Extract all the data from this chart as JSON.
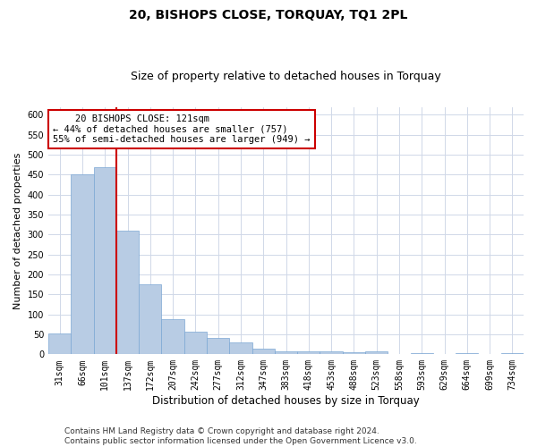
{
  "title": "20, BISHOPS CLOSE, TORQUAY, TQ1 2PL",
  "subtitle": "Size of property relative to detached houses in Torquay",
  "xlabel": "Distribution of detached houses by size in Torquay",
  "ylabel": "Number of detached properties",
  "bar_color": "#b8cce4",
  "bar_edge_color": "#7ba7d4",
  "grid_color": "#d0d8e8",
  "background_color": "#ffffff",
  "categories": [
    "31sqm",
    "66sqm",
    "101sqm",
    "137sqm",
    "172sqm",
    "207sqm",
    "242sqm",
    "277sqm",
    "312sqm",
    "347sqm",
    "383sqm",
    "418sqm",
    "453sqm",
    "488sqm",
    "523sqm",
    "558sqm",
    "593sqm",
    "629sqm",
    "664sqm",
    "699sqm",
    "734sqm"
  ],
  "values": [
    52,
    450,
    470,
    310,
    175,
    88,
    57,
    42,
    30,
    15,
    8,
    7,
    7,
    5,
    7,
    0,
    3,
    0,
    3,
    0,
    3
  ],
  "red_line_index": 2.5,
  "annotation_line1": "    20 BISHOPS CLOSE: 121sqm",
  "annotation_line2": "← 44% of detached houses are smaller (757)",
  "annotation_line3": "55% of semi-detached houses are larger (949) →",
  "annotation_box_color": "#ffffff",
  "annotation_box_edge_color": "#cc0000",
  "red_line_color": "#cc0000",
  "ylim": [
    0,
    620
  ],
  "yticks": [
    0,
    50,
    100,
    150,
    200,
    250,
    300,
    350,
    400,
    450,
    500,
    550,
    600
  ],
  "footer_line1": "Contains HM Land Registry data © Crown copyright and database right 2024.",
  "footer_line2": "Contains public sector information licensed under the Open Government Licence v3.0.",
  "title_fontsize": 10,
  "subtitle_fontsize": 9,
  "xlabel_fontsize": 8.5,
  "ylabel_fontsize": 8,
  "tick_fontsize": 7,
  "annotation_fontsize": 7.5,
  "footer_fontsize": 6.5
}
